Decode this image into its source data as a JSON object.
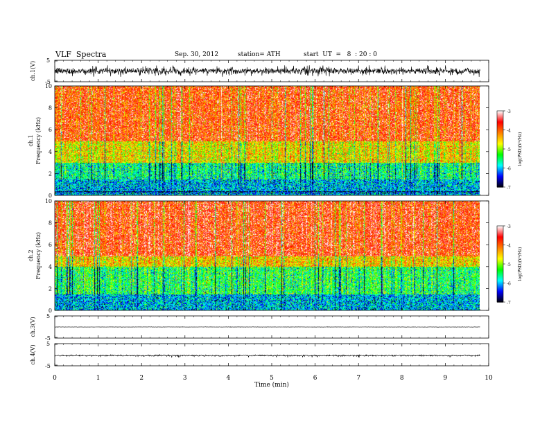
{
  "header": {
    "title": "VLF  Spectra",
    "date": "Sep. 30, 2012",
    "station": "station= ATH",
    "start": "start  UT  =   8  : 20 : 0"
  },
  "colors": {
    "spectrogram_scale": [
      "#000000",
      "#0000ff",
      "#00ffff",
      "#00ff00",
      "#ffff00",
      "#ff8000",
      "#ff0000",
      "#ffffff"
    ]
  },
  "chart_data": [
    {
      "type": "line",
      "panel": "ch1-waveform",
      "ylabel": "ch.1(V)",
      "ylim": [
        -5,
        5
      ],
      "yticks": [
        "5",
        "-5"
      ],
      "xlim": [
        0,
        10
      ],
      "series": [
        {
          "values_description_free": true,
          "mean": 0.0,
          "amplitude_range": [
            -2.5,
            2.5
          ]
        }
      ]
    },
    {
      "type": "heatmap",
      "panel": "ch1-spectrogram",
      "ylabel": "ch.1\nFrequency (kHz)",
      "ylim": [
        0,
        10
      ],
      "yticks": [
        "0",
        "2",
        "4",
        "6",
        "8",
        "10"
      ],
      "xlim": [
        0,
        9.8
      ],
      "colorbar": {
        "label": "log(PSD)(V²/Hz)",
        "range": [
          -7,
          -3
        ],
        "ticks": [
          "-3",
          "-4",
          "-5",
          "-6",
          "-7"
        ]
      },
      "bands_khz": [
        {
          "from": 0,
          "to": 1.5,
          "log_psd": -6.0
        },
        {
          "from": 1.5,
          "to": 3.0,
          "log_psd": -5.6
        },
        {
          "from": 3.0,
          "to": 5.0,
          "log_psd": -4.6
        },
        {
          "from": 5.0,
          "to": 10.0,
          "log_psd": -3.8
        }
      ]
    },
    {
      "type": "heatmap",
      "panel": "ch2-spectrogram",
      "ylabel": "ch.2\nFrequency (kHz)",
      "ylim": [
        0,
        10
      ],
      "yticks": [
        "0",
        "2",
        "4",
        "6",
        "8",
        "10"
      ],
      "xlim": [
        0,
        9.8
      ],
      "colorbar": {
        "label": "log(PSD)(V²/Hz)",
        "range": [
          -7,
          -3
        ],
        "ticks": [
          "-3",
          "-4",
          "-5",
          "-6",
          "-7"
        ]
      },
      "bands_khz": [
        {
          "from": 0,
          "to": 1.5,
          "log_psd": -6.0
        },
        {
          "from": 1.5,
          "to": 4.0,
          "log_psd": -5.4
        },
        {
          "from": 4.0,
          "to": 5.0,
          "log_psd": -4.5
        },
        {
          "from": 5.0,
          "to": 10.0,
          "log_psd": -3.7
        }
      ]
    },
    {
      "type": "line",
      "panel": "ch3-waveform",
      "ylabel": "ch.3(V)",
      "ylim": [
        -5,
        5
      ],
      "yticks": [
        "5",
        "-5"
      ],
      "xlim": [
        0,
        10
      ],
      "series": [
        {
          "mean": 0.0,
          "amplitude_range": [
            -0.1,
            0.1
          ]
        }
      ]
    },
    {
      "type": "line",
      "panel": "ch4-waveform",
      "ylabel": "ch.4(V)",
      "ylim": [
        -5,
        5
      ],
      "yticks": [
        "5",
        "-5"
      ],
      "xlim": [
        0,
        10
      ],
      "xlabel": "Time  (min)",
      "xticks": [
        "0",
        "1",
        "2",
        "3",
        "4",
        "5",
        "6",
        "7",
        "8",
        "9",
        "10"
      ],
      "series": [
        {
          "mean": -0.4,
          "amplitude_range": [
            -0.8,
            0.1
          ]
        }
      ]
    }
  ]
}
